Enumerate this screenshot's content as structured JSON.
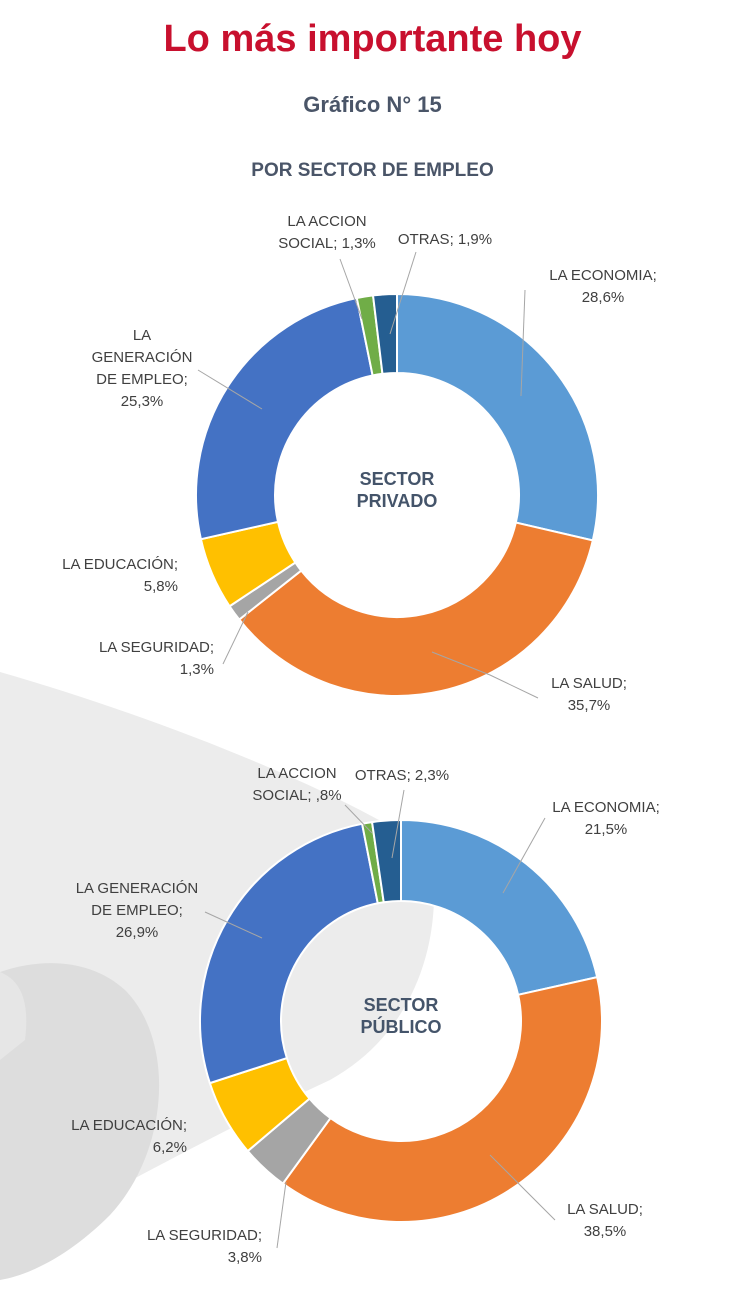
{
  "header": {
    "title": "Lo más importante hoy",
    "chart_number": "Gráfico N° 15",
    "subtitle": "POR SECTOR DE EMPLEO"
  },
  "colors": {
    "title": "#c8102e",
    "LA ECONOMIA": "#5b9bd5",
    "LA SALUD": "#ed7d31",
    "LA SEGURIDAD": "#a5a5a5",
    "LA EDUCACIÓN": "#ffc000",
    "LA GENERACIÓN DE EMPLEO": "#4472c4",
    "LA ACCION SOCIAL": "#70ad47",
    "OTRAS": "#255e91"
  },
  "chart_data": [
    {
      "type": "pie",
      "center_label": [
        "SECTOR",
        "PRIVADO"
      ],
      "slices": [
        {
          "category": "LA ECONOMIA",
          "value": 28.6,
          "label_lines": [
            "LA ECONOMIA;",
            "28,6%"
          ]
        },
        {
          "category": "LA SALUD",
          "value": 35.7,
          "label_lines": [
            "LA SALUD;",
            "35,7%"
          ]
        },
        {
          "category": "LA SEGURIDAD",
          "value": 1.3,
          "label_lines": [
            "LA SEGURIDAD;",
            "1,3%"
          ]
        },
        {
          "category": "LA EDUCACIÓN",
          "value": 5.8,
          "label_lines": [
            "LA EDUCACIÓN;",
            "5,8%"
          ]
        },
        {
          "category": "LA GENERACIÓN DE EMPLEO",
          "value": 25.3,
          "label_lines": [
            "LA",
            "GENERACIÓN",
            "DE EMPLEO;",
            "25,3%"
          ]
        },
        {
          "category": "LA ACCION SOCIAL",
          "value": 1.3,
          "label_lines": [
            "LA ACCION",
            "SOCIAL; 1,3%"
          ]
        },
        {
          "category": "OTRAS",
          "value": 1.9,
          "label_lines": [
            "OTRAS; 1,9%"
          ]
        }
      ]
    },
    {
      "type": "pie",
      "center_label": [
        "SECTOR",
        "PÚBLICO"
      ],
      "slices": [
        {
          "category": "LA ECONOMIA",
          "value": 21.5,
          "label_lines": [
            "LA ECONOMIA;",
            "21,5%"
          ]
        },
        {
          "category": "LA SALUD",
          "value": 38.5,
          "label_lines": [
            "LA SALUD;",
            "38,5%"
          ]
        },
        {
          "category": "LA SEGURIDAD",
          "value": 3.8,
          "label_lines": [
            "LA SEGURIDAD;",
            "3,8%"
          ]
        },
        {
          "category": "LA EDUCACIÓN",
          "value": 6.2,
          "label_lines": [
            "LA EDUCACIÓN;",
            "6,2%"
          ]
        },
        {
          "category": "LA GENERACIÓN DE EMPLEO",
          "value": 26.9,
          "label_lines": [
            "LA GENERACIÓN",
            "DE EMPLEO;",
            "26,9%"
          ]
        },
        {
          "category": "LA ACCION SOCIAL",
          "value": 0.8,
          "label_lines": [
            "LA ACCION",
            "SOCIAL; ,8%"
          ]
        },
        {
          "category": "OTRAS",
          "value": 2.3,
          "label_lines": [
            "OTRAS; 2,3%"
          ]
        }
      ]
    }
  ]
}
